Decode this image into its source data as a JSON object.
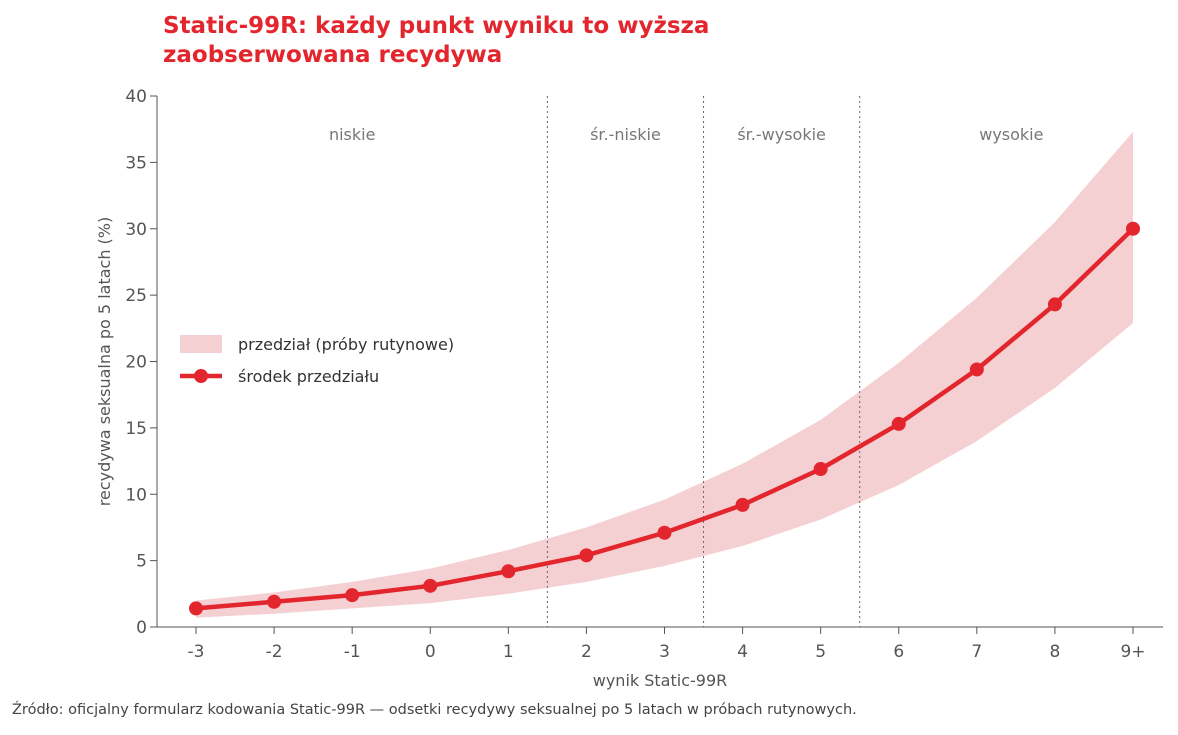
{
  "chart_data": {
    "type": "line",
    "title": "Static-99R: każdy punkt wyniku to wyższa zaobserwowana recydywa",
    "xlabel": "wynik Static-99R",
    "ylabel": "recydywa seksualna po 5 latach (%)",
    "categories": [
      "-3",
      "-2",
      "-1",
      "0",
      "1",
      "2",
      "3",
      "4",
      "5",
      "6",
      "7",
      "8",
      "9+"
    ],
    "ylim": [
      0,
      40
    ],
    "yticks": [
      0,
      5,
      10,
      15,
      20,
      25,
      30,
      35,
      40
    ],
    "series": [
      {
        "name": "środek przedziału",
        "values": [
          1.4,
          1.9,
          2.4,
          3.1,
          4.2,
          5.4,
          7.1,
          9.2,
          11.9,
          15.3,
          19.4,
          24.3,
          30.0
        ]
      }
    ],
    "band": {
      "name": "przedział (próby rutynowe)",
      "lower": [
        0.7,
        1.0,
        1.4,
        1.8,
        2.5,
        3.4,
        4.6,
        6.1,
        8.1,
        10.7,
        14.0,
        18.0,
        22.9
      ],
      "upper": [
        2.0,
        2.6,
        3.4,
        4.4,
        5.8,
        7.5,
        9.6,
        12.3,
        15.6,
        19.9,
        24.8,
        30.5,
        37.3
      ]
    },
    "regions": [
      {
        "label": "niskie",
        "from": "-3",
        "to": "1"
      },
      {
        "label": "śr.-niskie",
        "from": "2",
        "to": "3"
      },
      {
        "label": "śr.-wysokie",
        "from": "4",
        "to": "5"
      },
      {
        "label": "wysokie",
        "from": "6",
        "to": "9+"
      }
    ],
    "region_boundaries": [
      1.5,
      3.5,
      5.5
    ],
    "legend_position": "left",
    "colors": {
      "line": "#e3262d",
      "band": "#f5d0d2",
      "title": "#e3262d"
    }
  },
  "source": "Źródło: oficjalny formularz kodowania Static-99R — odsetki recydywy seksualnej po 5 latach w próbach rutynowych."
}
